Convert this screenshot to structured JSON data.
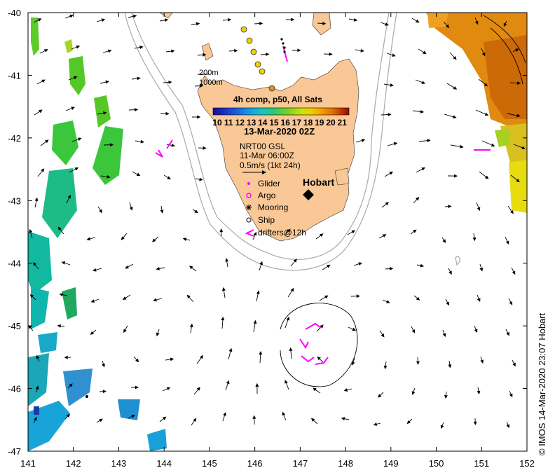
{
  "map": {
    "lon_range": [
      141,
      152
    ],
    "lat_range": [
      -47,
      -40
    ],
    "x_ticks": [
      "141",
      "142",
      "143",
      "144",
      "145",
      "146",
      "147",
      "148",
      "149",
      "150",
      "151",
      "152"
    ],
    "y_ticks": [
      "-40",
      "-41",
      "-42",
      "-43",
      "-44",
      "-45",
      "-46",
      "-47"
    ],
    "land_color": "#f9c896",
    "contour_color": "#a8a8a8",
    "vector_color": "#000000"
  },
  "annotations": {
    "depth_200": "200m",
    "depth_1000": "1000m",
    "composite_title": "4h comp, p50, All Sats",
    "colorbar_ticks": [
      "10",
      "11",
      "12",
      "13",
      "14",
      "15",
      "16",
      "17",
      "18",
      "19",
      "20",
      "21"
    ],
    "date": "13-Mar-2020 02Z",
    "product": "NRT00 GSL",
    "product_date": "11-Mar 06:00Z",
    "scale": "0.5m/s (1kt 24h)",
    "city": "Hobart"
  },
  "legend": [
    {
      "label": "Glider",
      "symbol": "glider"
    },
    {
      "label": "Argo",
      "symbol": "argo"
    },
    {
      "label": "Mooring",
      "symbol": "mooring"
    },
    {
      "label": "Ship",
      "symbol": "ship"
    },
    {
      "label": "drifters@12h",
      "symbol": "drifter"
    }
  ],
  "credit": "© IMOS 14-Mar-2020 23:07 Hobart",
  "colors": {
    "colorbar": [
      "#1a0a8c",
      "#1e40d2",
      "#1c8ee6",
      "#18c0c8",
      "#30c870",
      "#7ed020",
      "#cde010",
      "#f0d000",
      "#f0a000",
      "#e07000",
      "#c03000",
      "#8a1000"
    ],
    "glider": "#ff00ff"
  }
}
